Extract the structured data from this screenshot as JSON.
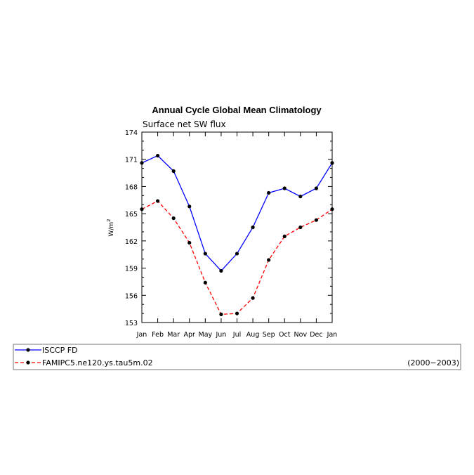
{
  "chart_data": {
    "type": "line",
    "title": "Annual Cycle Global Mean Climatology",
    "subtitle": "Surface net SW flux",
    "ylabel_main": "W/m",
    "ylabel_sup": "2",
    "ylim": [
      153,
      174
    ],
    "yticks": [
      "153",
      "156",
      "159",
      "162",
      "165",
      "168",
      "171",
      "174"
    ],
    "categories": [
      "Jan",
      "Feb",
      "Mar",
      "Apr",
      "May",
      "Jun",
      "Jul",
      "Aug",
      "Sep",
      "Oct",
      "Nov",
      "Dec",
      "Jan"
    ],
    "series": [
      {
        "name": "ISCCP FD",
        "color": "#0000ff",
        "dash": "solid",
        "values": [
          170.6,
          171.4,
          169.7,
          165.8,
          160.6,
          158.7,
          160.6,
          163.5,
          167.3,
          167.8,
          166.9,
          167.8,
          170.6
        ]
      },
      {
        "name": "FAMIPC5.ne120.ys.tau5m.02",
        "color": "#ff0000",
        "dash": "dashed",
        "values": [
          165.5,
          166.4,
          164.5,
          161.8,
          157.4,
          153.9,
          154.0,
          155.7,
          159.9,
          162.5,
          163.5,
          164.3,
          165.5
        ]
      }
    ],
    "legend_note": "(2000−2003)",
    "grid": false,
    "legend_position": "bottom"
  }
}
